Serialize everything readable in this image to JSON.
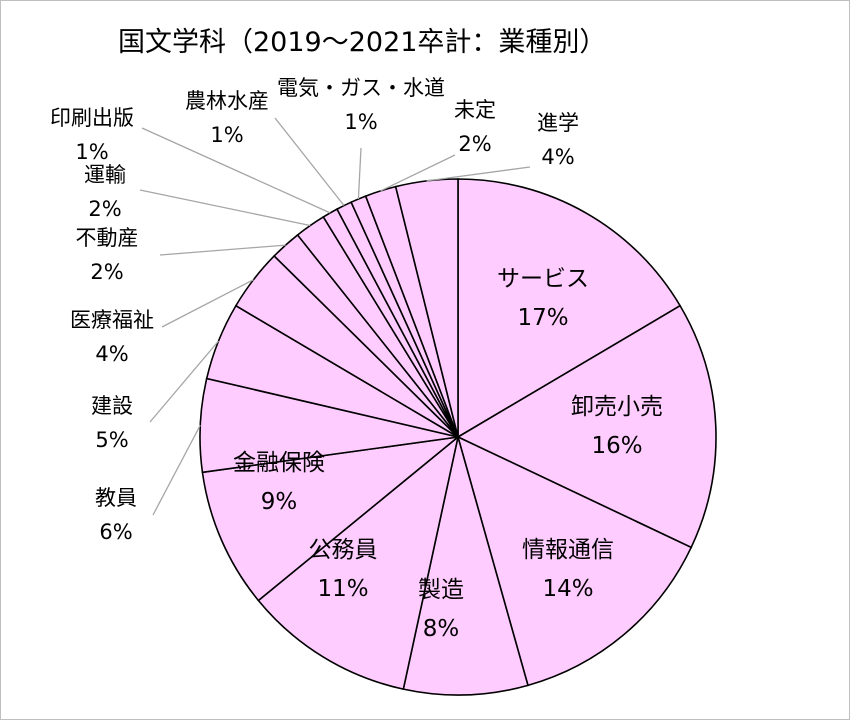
{
  "chart_data": {
    "type": "pie",
    "title": "国文学科（2019～2021卒計：業種別）",
    "slice_color": "#ffccff",
    "edge_color": "#000000",
    "leader_color": "#a6a6a6",
    "slices": [
      {
        "label": "サービス",
        "value": 17,
        "value_label": "17%"
      },
      {
        "label": "卸売小売",
        "value": 16,
        "value_label": "16%"
      },
      {
        "label": "情報通信",
        "value": 14,
        "value_label": "14%"
      },
      {
        "label": "製造",
        "value": 8,
        "value_label": "8%"
      },
      {
        "label": "公務員",
        "value": 11,
        "value_label": "11%"
      },
      {
        "label": "金融保険",
        "value": 9,
        "value_label": "9%"
      },
      {
        "label": "教員",
        "value": 6,
        "value_label": "6%"
      },
      {
        "label": "建設",
        "value": 5,
        "value_label": "5%"
      },
      {
        "label": "医療福祉",
        "value": 4,
        "value_label": "4%"
      },
      {
        "label": "不動産",
        "value": 2,
        "value_label": "2%"
      },
      {
        "label": "運輸",
        "value": 2,
        "value_label": "2%"
      },
      {
        "label": "印刷出版",
        "value": 1,
        "value_label": "1%"
      },
      {
        "label": "農林水産",
        "value": 1,
        "value_label": "1%"
      },
      {
        "label": "電気・ガス・水道",
        "value": 1,
        "value_label": "1%"
      },
      {
        "label": "未定",
        "value": 2,
        "value_label": "2%"
      },
      {
        "label": "進学",
        "value": 4,
        "value_label": "4%"
      }
    ]
  }
}
